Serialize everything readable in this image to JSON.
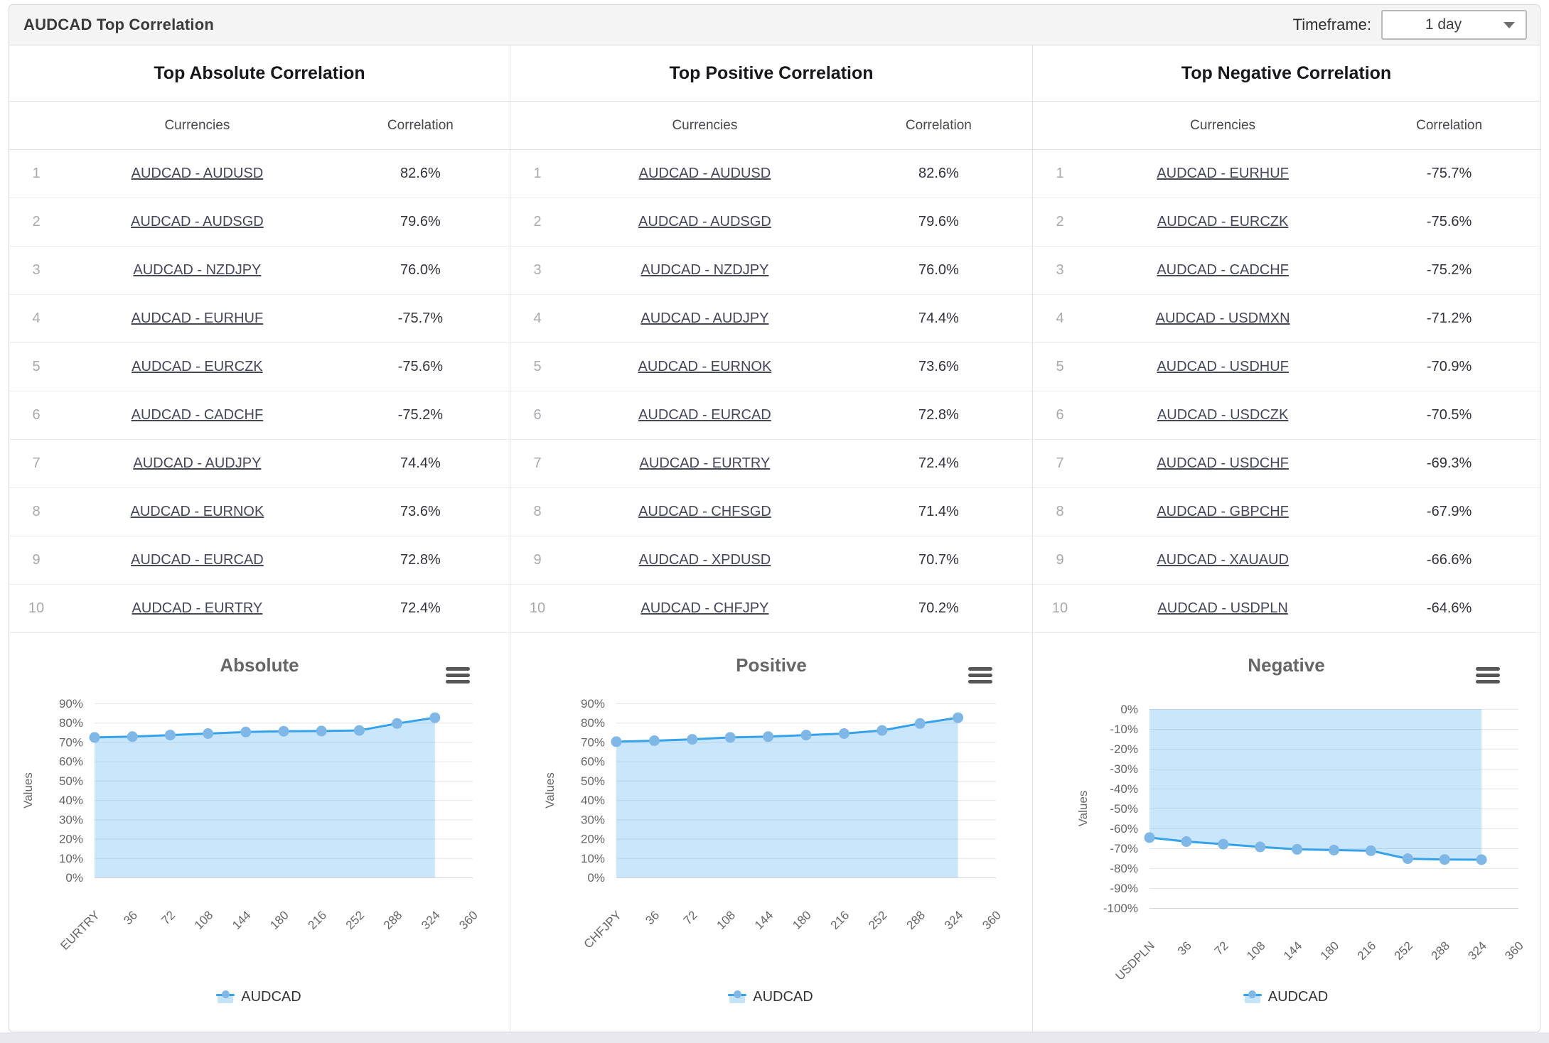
{
  "header": {
    "title": "AUDCAD Top Correlation",
    "timeframe_label": "Timeframe:",
    "timeframe_value": "1 day"
  },
  "tables": [
    {
      "title": "Top Absolute Correlation",
      "columns": {
        "currencies": "Currencies",
        "correlation": "Correlation"
      },
      "rows": [
        {
          "rank": "1",
          "pair": "AUDCAD - AUDUSD",
          "value": "82.6%"
        },
        {
          "rank": "2",
          "pair": "AUDCAD - AUDSGD",
          "value": "79.6%"
        },
        {
          "rank": "3",
          "pair": "AUDCAD - NZDJPY",
          "value": "76.0%"
        },
        {
          "rank": "4",
          "pair": "AUDCAD - EURHUF",
          "value": "-75.7%"
        },
        {
          "rank": "5",
          "pair": "AUDCAD - EURCZK",
          "value": "-75.6%"
        },
        {
          "rank": "6",
          "pair": "AUDCAD - CADCHF",
          "value": "-75.2%"
        },
        {
          "rank": "7",
          "pair": "AUDCAD - AUDJPY",
          "value": "74.4%"
        },
        {
          "rank": "8",
          "pair": "AUDCAD - EURNOK",
          "value": "73.6%"
        },
        {
          "rank": "9",
          "pair": "AUDCAD - EURCAD",
          "value": "72.8%"
        },
        {
          "rank": "10",
          "pair": "AUDCAD - EURTRY",
          "value": "72.4%"
        }
      ]
    },
    {
      "title": "Top Positive Correlation",
      "columns": {
        "currencies": "Currencies",
        "correlation": "Correlation"
      },
      "rows": [
        {
          "rank": "1",
          "pair": "AUDCAD - AUDUSD",
          "value": "82.6%"
        },
        {
          "rank": "2",
          "pair": "AUDCAD - AUDSGD",
          "value": "79.6%"
        },
        {
          "rank": "3",
          "pair": "AUDCAD - NZDJPY",
          "value": "76.0%"
        },
        {
          "rank": "4",
          "pair": "AUDCAD - AUDJPY",
          "value": "74.4%"
        },
        {
          "rank": "5",
          "pair": "AUDCAD - EURNOK",
          "value": "73.6%"
        },
        {
          "rank": "6",
          "pair": "AUDCAD - EURCAD",
          "value": "72.8%"
        },
        {
          "rank": "7",
          "pair": "AUDCAD - EURTRY",
          "value": "72.4%"
        },
        {
          "rank": "8",
          "pair": "AUDCAD - CHFSGD",
          "value": "71.4%"
        },
        {
          "rank": "9",
          "pair": "AUDCAD - XPDUSD",
          "value": "70.7%"
        },
        {
          "rank": "10",
          "pair": "AUDCAD - CHFJPY",
          "value": "70.2%"
        }
      ]
    },
    {
      "title": "Top Negative Correlation",
      "columns": {
        "currencies": "Currencies",
        "correlation": "Correlation"
      },
      "rows": [
        {
          "rank": "1",
          "pair": "AUDCAD - EURHUF",
          "value": "-75.7%"
        },
        {
          "rank": "2",
          "pair": "AUDCAD - EURCZK",
          "value": "-75.6%"
        },
        {
          "rank": "3",
          "pair": "AUDCAD - CADCHF",
          "value": "-75.2%"
        },
        {
          "rank": "4",
          "pair": "AUDCAD - USDMXN",
          "value": "-71.2%"
        },
        {
          "rank": "5",
          "pair": "AUDCAD - USDHUF",
          "value": "-70.9%"
        },
        {
          "rank": "6",
          "pair": "AUDCAD - USDCZK",
          "value": "-70.5%"
        },
        {
          "rank": "7",
          "pair": "AUDCAD - USDCHF",
          "value": "-69.3%"
        },
        {
          "rank": "8",
          "pair": "AUDCAD - GBPCHF",
          "value": "-67.9%"
        },
        {
          "rank": "9",
          "pair": "AUDCAD - XAUAUD",
          "value": "-66.6%"
        },
        {
          "rank": "10",
          "pair": "AUDCAD - USDPLN",
          "value": "-64.6%"
        }
      ]
    }
  ],
  "chart_data": [
    {
      "type": "area",
      "title": "Absolute",
      "ylabel": "Values",
      "ylim": [
        0,
        90
      ],
      "ytick_step": 10,
      "yticks": [
        "90%",
        "80%",
        "70%",
        "60%",
        "50%",
        "40%",
        "30%",
        "20%",
        "10%",
        "0%"
      ],
      "categories": [
        "EURTRY",
        "36",
        "72",
        "108",
        "144",
        "180",
        "216",
        "252",
        "288",
        "324",
        "360"
      ],
      "series": [
        {
          "name": "AUDCAD",
          "values": [
            72.4,
            72.8,
            73.6,
            74.4,
            75.2,
            75.6,
            75.7,
            76.0,
            79.6,
            82.6
          ]
        }
      ],
      "grid": true,
      "legend_position": "bottom"
    },
    {
      "type": "area",
      "title": "Positive",
      "ylabel": "Values",
      "ylim": [
        0,
        90
      ],
      "ytick_step": 10,
      "yticks": [
        "90%",
        "80%",
        "70%",
        "60%",
        "50%",
        "40%",
        "30%",
        "20%",
        "10%",
        "0%"
      ],
      "categories": [
        "CHFJPY",
        "36",
        "72",
        "108",
        "144",
        "180",
        "216",
        "252",
        "288",
        "324",
        "360"
      ],
      "series": [
        {
          "name": "AUDCAD",
          "values": [
            70.2,
            70.7,
            71.4,
            72.4,
            72.8,
            73.6,
            74.4,
            76.0,
            79.6,
            82.6
          ]
        }
      ],
      "grid": true,
      "legend_position": "bottom"
    },
    {
      "type": "area",
      "title": "Negative",
      "ylabel": "Values",
      "ylim": [
        -100,
        0
      ],
      "ytick_step": 10,
      "yticks": [
        "0%",
        "-10%",
        "-20%",
        "-30%",
        "-40%",
        "-50%",
        "-60%",
        "-70%",
        "-80%",
        "-90%",
        "-100%"
      ],
      "categories": [
        "USDPLN",
        "36",
        "72",
        "108",
        "144",
        "180",
        "216",
        "252",
        "288",
        "324",
        "360"
      ],
      "series": [
        {
          "name": "AUDCAD",
          "values": [
            -64.6,
            -66.6,
            -67.9,
            -69.3,
            -70.5,
            -70.9,
            -71.2,
            -75.2,
            -75.6,
            -75.7
          ]
        }
      ],
      "grid": true,
      "legend_position": "bottom"
    }
  ],
  "colors": {
    "accent_line": "#35a2ea",
    "marker": "#7fb8e6",
    "area_fill": "rgba(60,164,235,0.27)",
    "grid": "#e6e6e6",
    "axis_line": "#d3d3d3",
    "axis_text": "#666666",
    "link": "#464659"
  }
}
